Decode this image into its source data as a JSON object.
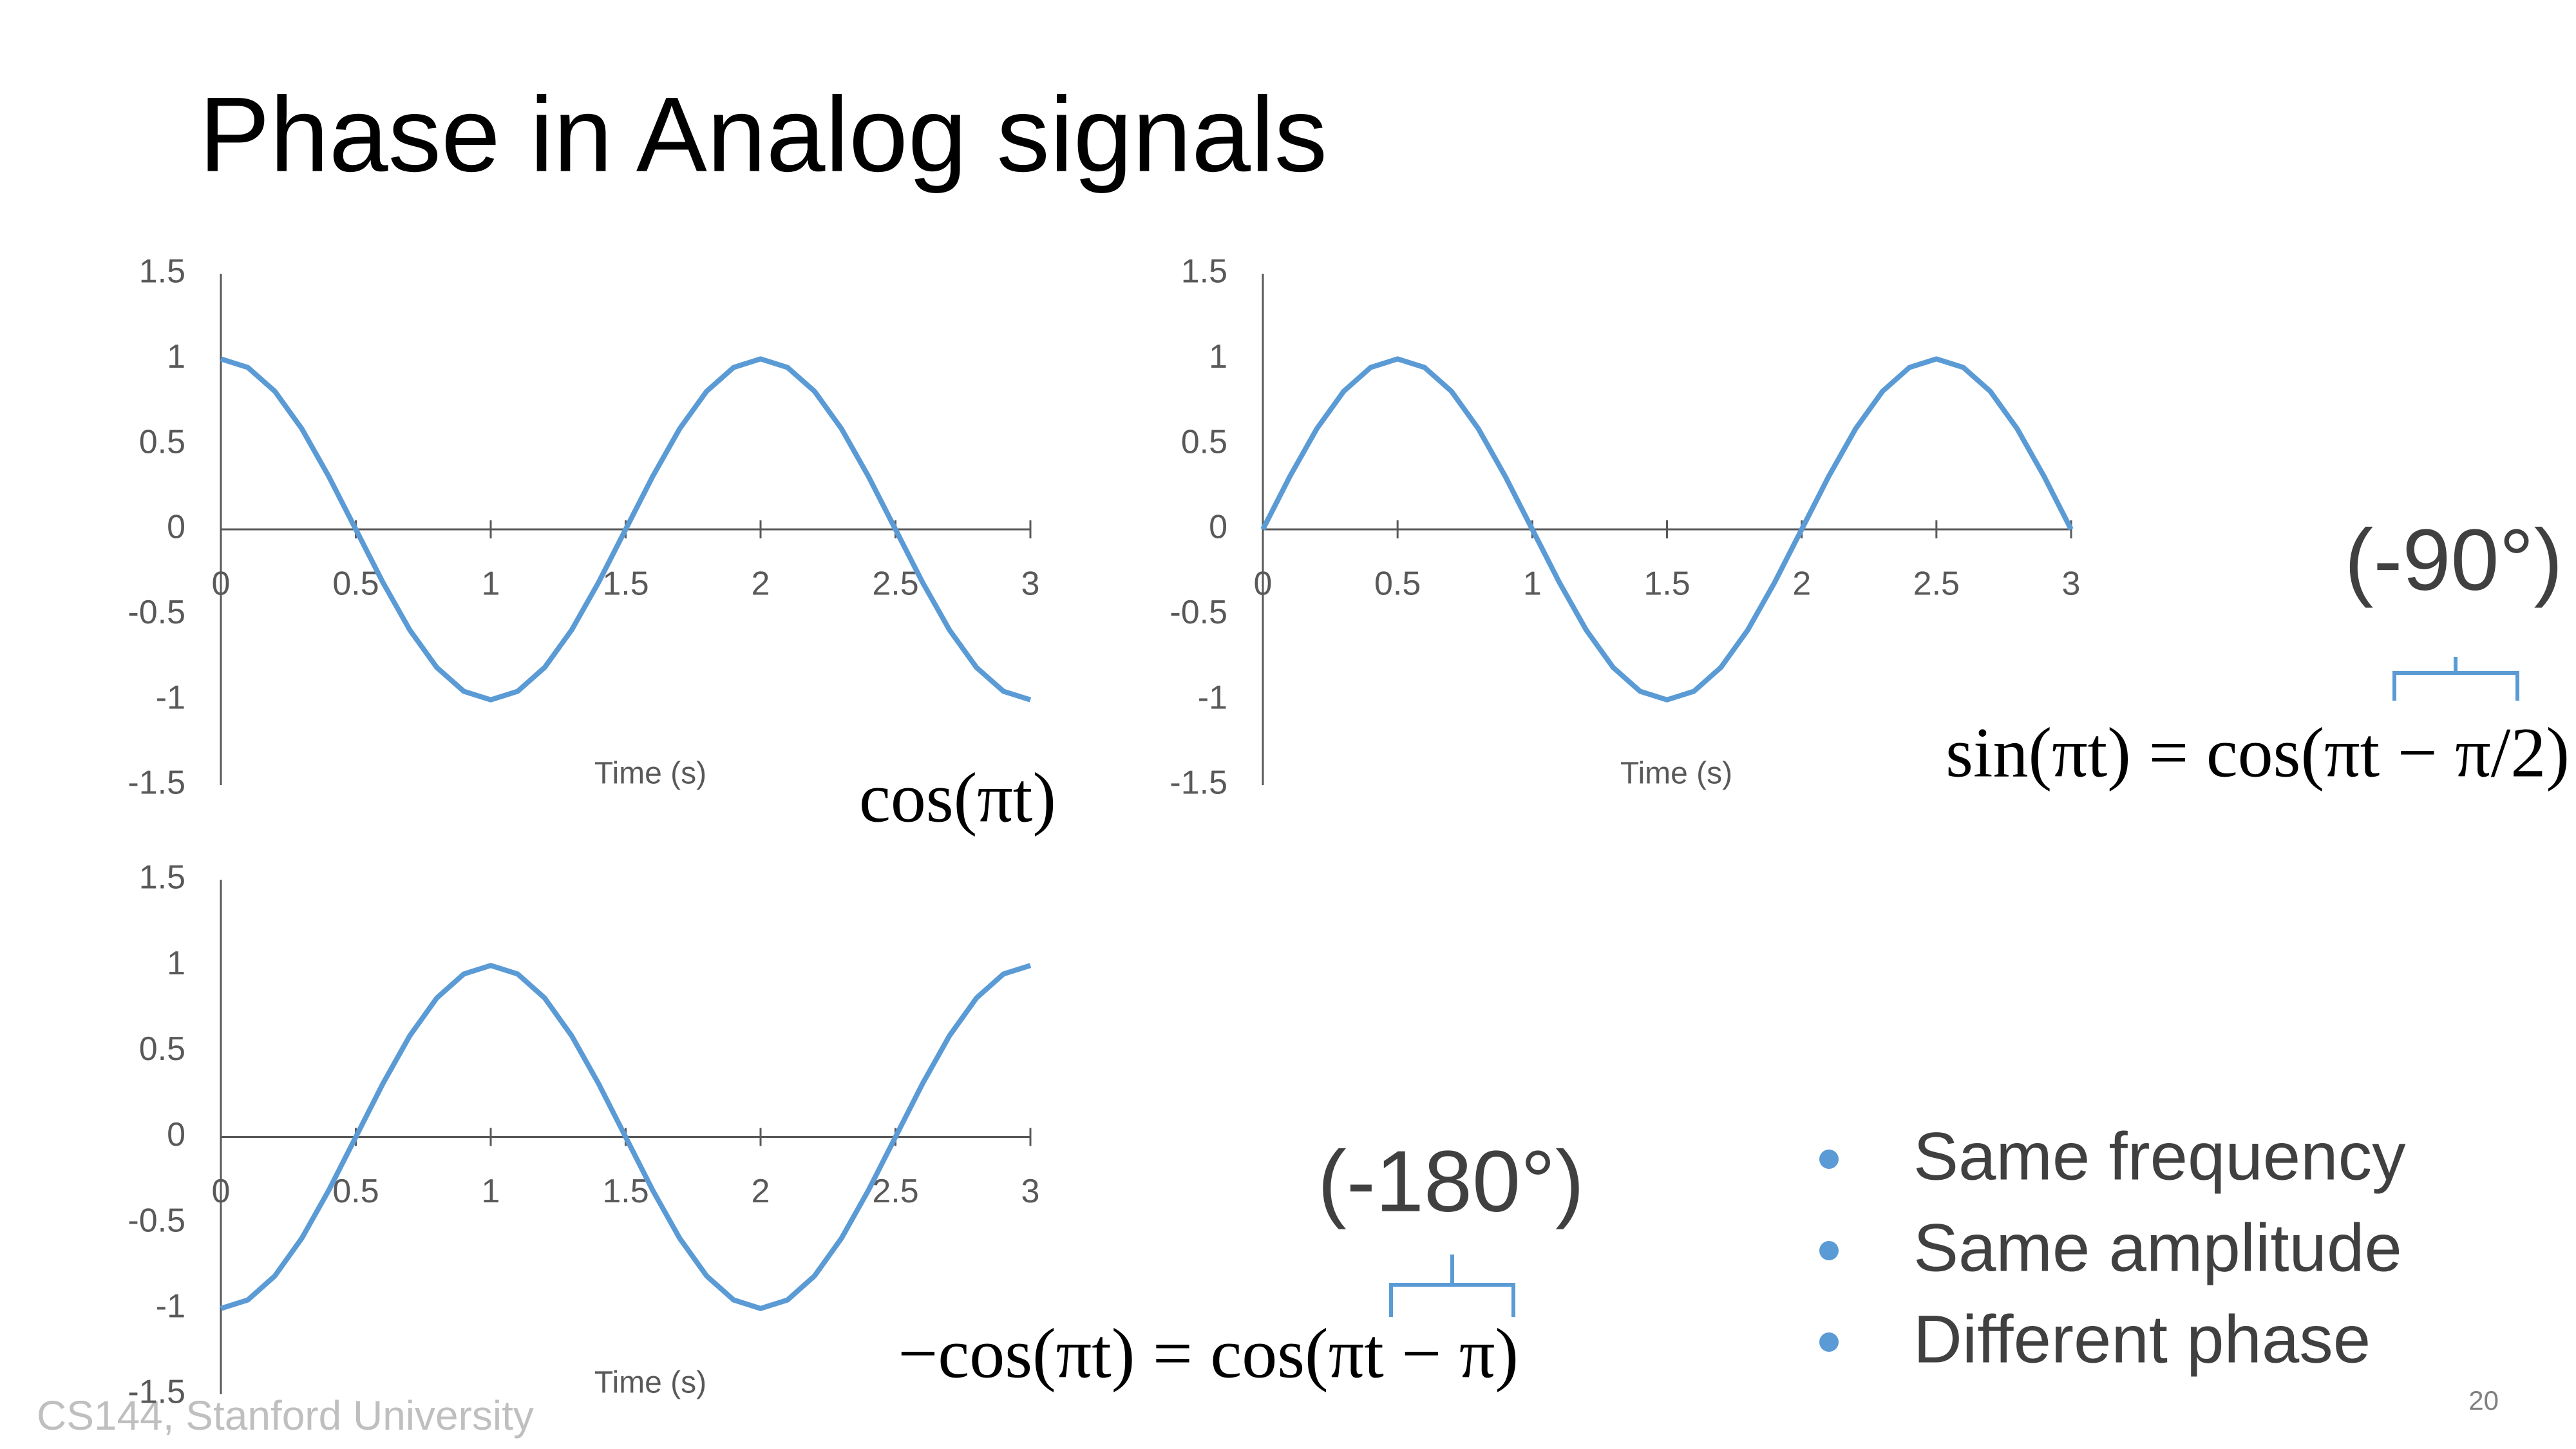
{
  "slide": {
    "title": "Phase in Analog signals",
    "formulas": [
      "cos(πt)",
      "sin(πt) = cos(πt − π/2)",
      "−cos(πt) = cos(πt − π)"
    ],
    "phase_labels": [
      "(-90°)",
      "(-180°)"
    ],
    "bullets": [
      "Same frequency",
      "Same amplitude",
      "Different phase"
    ],
    "footer": "CS144, Stanford University",
    "page_number": "20"
  },
  "chart_data": [
    {
      "type": "line",
      "x_label": "Time (s)",
      "color": "#5b9bd5",
      "x": [
        0,
        0.1,
        0.2,
        0.3,
        0.4,
        0.5,
        0.6,
        0.7,
        0.8,
        0.9,
        1,
        1.1,
        1.2,
        1.3,
        1.4,
        1.5,
        1.6,
        1.7,
        1.8,
        1.9,
        2,
        2.1,
        2.2,
        2.3,
        2.4,
        2.5,
        2.6,
        2.7,
        2.8,
        2.9,
        3
      ],
      "values": [
        1,
        0.95,
        0.81,
        0.59,
        0.31,
        0,
        -0.31,
        -0.59,
        -0.81,
        -0.95,
        -1,
        -0.95,
        -0.81,
        -0.59,
        -0.31,
        0,
        0.31,
        0.59,
        0.81,
        0.95,
        1,
        0.95,
        0.81,
        0.59,
        0.31,
        0,
        -0.31,
        -0.59,
        -0.81,
        -0.95,
        -1
      ],
      "xlim": [
        0,
        3
      ],
      "ylim": [
        -1.5,
        1.5
      ],
      "xticks": [
        0,
        0.5,
        1,
        1.5,
        2,
        2.5,
        3
      ],
      "yticks": [
        1.5,
        1,
        0.5,
        0,
        -0.5,
        -1,
        -1.5
      ],
      "grid": false
    },
    {
      "type": "line",
      "x_label": "Time (s)",
      "color": "#5b9bd5",
      "x": [
        0,
        0.1,
        0.2,
        0.3,
        0.4,
        0.5,
        0.6,
        0.7,
        0.8,
        0.9,
        1,
        1.1,
        1.2,
        1.3,
        1.4,
        1.5,
        1.6,
        1.7,
        1.8,
        1.9,
        2,
        2.1,
        2.2,
        2.3,
        2.4,
        2.5,
        2.6,
        2.7,
        2.8,
        2.9,
        3
      ],
      "values": [
        0,
        0.31,
        0.59,
        0.81,
        0.95,
        1,
        0.95,
        0.81,
        0.59,
        0.31,
        0,
        -0.31,
        -0.59,
        -0.81,
        -0.95,
        -1,
        -0.95,
        -0.81,
        -0.59,
        -0.31,
        0,
        0.31,
        0.59,
        0.81,
        0.95,
        1,
        0.95,
        0.81,
        0.59,
        0.31,
        0
      ],
      "xlim": [
        0,
        3
      ],
      "ylim": [
        -1.5,
        1.5
      ],
      "xticks": [
        0,
        0.5,
        1,
        1.5,
        2,
        2.5,
        3
      ],
      "yticks": [
        1.5,
        1,
        0.5,
        0,
        -0.5,
        -1,
        -1.5
      ],
      "grid": false
    },
    {
      "type": "line",
      "x_label": "Time (s)",
      "color": "#5b9bd5",
      "x": [
        0,
        0.1,
        0.2,
        0.3,
        0.4,
        0.5,
        0.6,
        0.7,
        0.8,
        0.9,
        1,
        1.1,
        1.2,
        1.3,
        1.4,
        1.5,
        1.6,
        1.7,
        1.8,
        1.9,
        2,
        2.1,
        2.2,
        2.3,
        2.4,
        2.5,
        2.6,
        2.7,
        2.8,
        2.9,
        3
      ],
      "values": [
        -1,
        -0.95,
        -0.81,
        -0.59,
        -0.31,
        0,
        0.31,
        0.59,
        0.81,
        0.95,
        1,
        0.95,
        0.81,
        0.59,
        0.31,
        0,
        -0.31,
        -0.59,
        -0.81,
        -0.95,
        -1,
        -0.95,
        -0.81,
        -0.59,
        -0.31,
        0,
        0.31,
        0.59,
        0.81,
        0.95,
        1
      ],
      "xlim": [
        0,
        3
      ],
      "ylim": [
        -1.5,
        1.5
      ],
      "xticks": [
        0,
        0.5,
        1,
        1.5,
        2,
        2.5,
        3
      ],
      "yticks": [
        1.5,
        1,
        0.5,
        0,
        -0.5,
        -1,
        -1.5
      ],
      "grid": false
    }
  ]
}
